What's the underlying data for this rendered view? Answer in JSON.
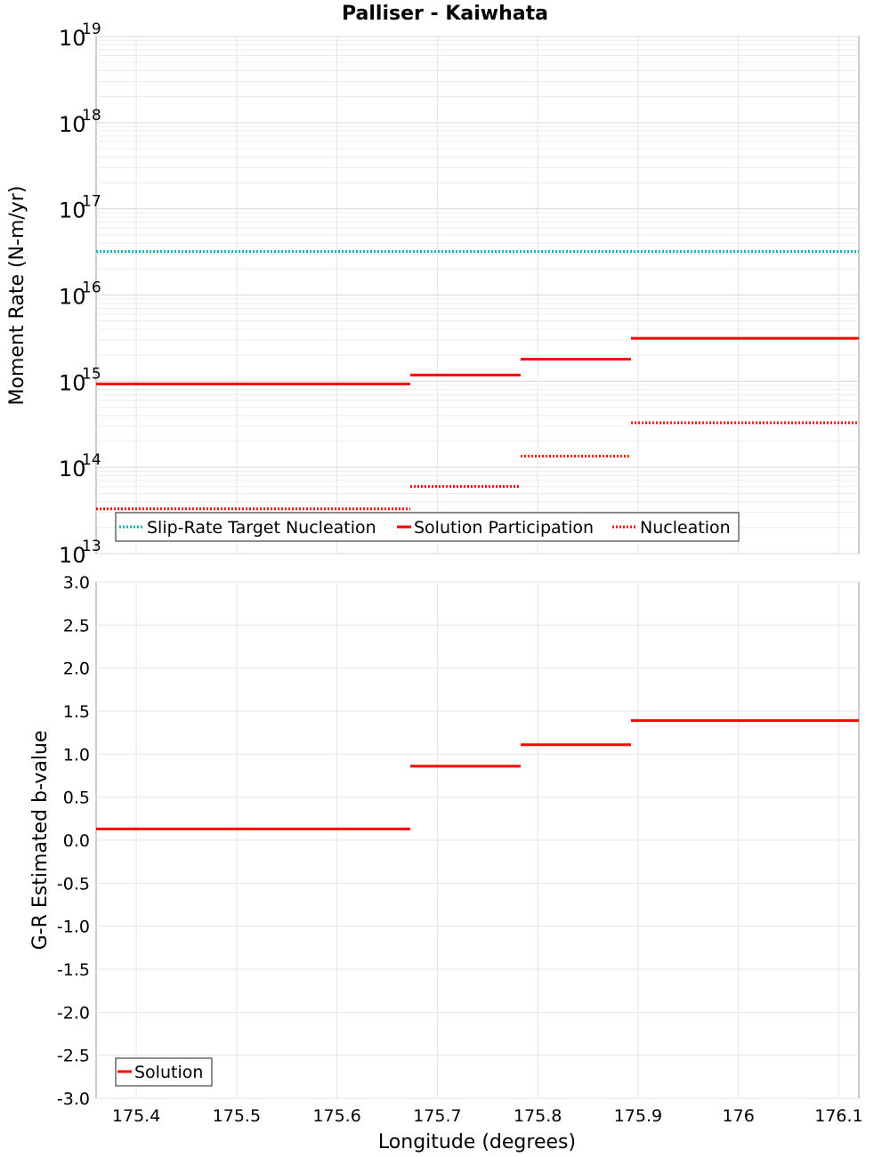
{
  "chart_data": [
    {
      "type": "line",
      "title": "Palliser - Kaiwhata",
      "ylabel": "Moment Rate (N-m/yr)",
      "xlabel": "",
      "yscale": "log",
      "ylim": [
        10000000000000.0,
        1e+19
      ],
      "xlim": [
        175.36,
        176.12
      ],
      "grid": true,
      "y_tick_exponents": [
        "13",
        "14",
        "15",
        "16",
        "17",
        "18",
        "19"
      ],
      "y_tick_base": "10",
      "legend_position": "bottom-left",
      "series": [
        {
          "name": "Slip-Rate Target Nucleation",
          "style": "dotted",
          "color": "#00b3b3",
          "segments": [
            {
              "x": [
                175.36,
                176.12
              ],
              "y": 3.2e+16
            }
          ]
        },
        {
          "name": "Solution Participation",
          "style": "solid",
          "color": "#ff0000",
          "segments": [
            {
              "x": [
                175.36,
                175.673
              ],
              "y": 930000000000000.0
            },
            {
              "x": [
                175.673,
                175.783
              ],
              "y": 1180000000000000.0
            },
            {
              "x": [
                175.783,
                175.893
              ],
              "y": 1800000000000000.0
            },
            {
              "x": [
                175.893,
                176.12
              ],
              "y": 3150000000000000.0
            }
          ]
        },
        {
          "name": "Nucleation",
          "style": "dotted",
          "color": "#ff0000",
          "segments": [
            {
              "x": [
                175.36,
                175.673
              ],
              "y": 33000000000000.0
            },
            {
              "x": [
                175.673,
                175.783
              ],
              "y": 60000000000000.0
            },
            {
              "x": [
                175.783,
                175.893
              ],
              "y": 135000000000000.0
            },
            {
              "x": [
                175.893,
                176.12
              ],
              "y": 330000000000000.0
            }
          ]
        }
      ]
    },
    {
      "type": "line",
      "title": "",
      "ylabel": "G-R Estimated b-value",
      "xlabel": "Longitude (degrees)",
      "ylim": [
        -3.0,
        3.0
      ],
      "xlim": [
        175.36,
        176.12
      ],
      "grid": true,
      "y_ticks": [
        "3.0",
        "2.5",
        "2.0",
        "1.5",
        "1.0",
        "0.5",
        "0.0",
        "-0.5",
        "-1.0",
        "-1.5",
        "-2.0",
        "-2.5",
        "-3.0"
      ],
      "x_ticks": [
        "175.4",
        "175.5",
        "175.6",
        "175.7",
        "175.8",
        "175.9",
        "176",
        "176.1"
      ],
      "legend_position": "bottom-left",
      "series": [
        {
          "name": "Solution",
          "style": "solid",
          "color": "#ff0000",
          "segments": [
            {
              "x": [
                175.36,
                175.673
              ],
              "y": 0.13
            },
            {
              "x": [
                175.673,
                175.783
              ],
              "y": 0.86
            },
            {
              "x": [
                175.783,
                175.893
              ],
              "y": 1.11
            },
            {
              "x": [
                175.893,
                176.12
              ],
              "y": 1.39
            }
          ]
        }
      ]
    }
  ]
}
